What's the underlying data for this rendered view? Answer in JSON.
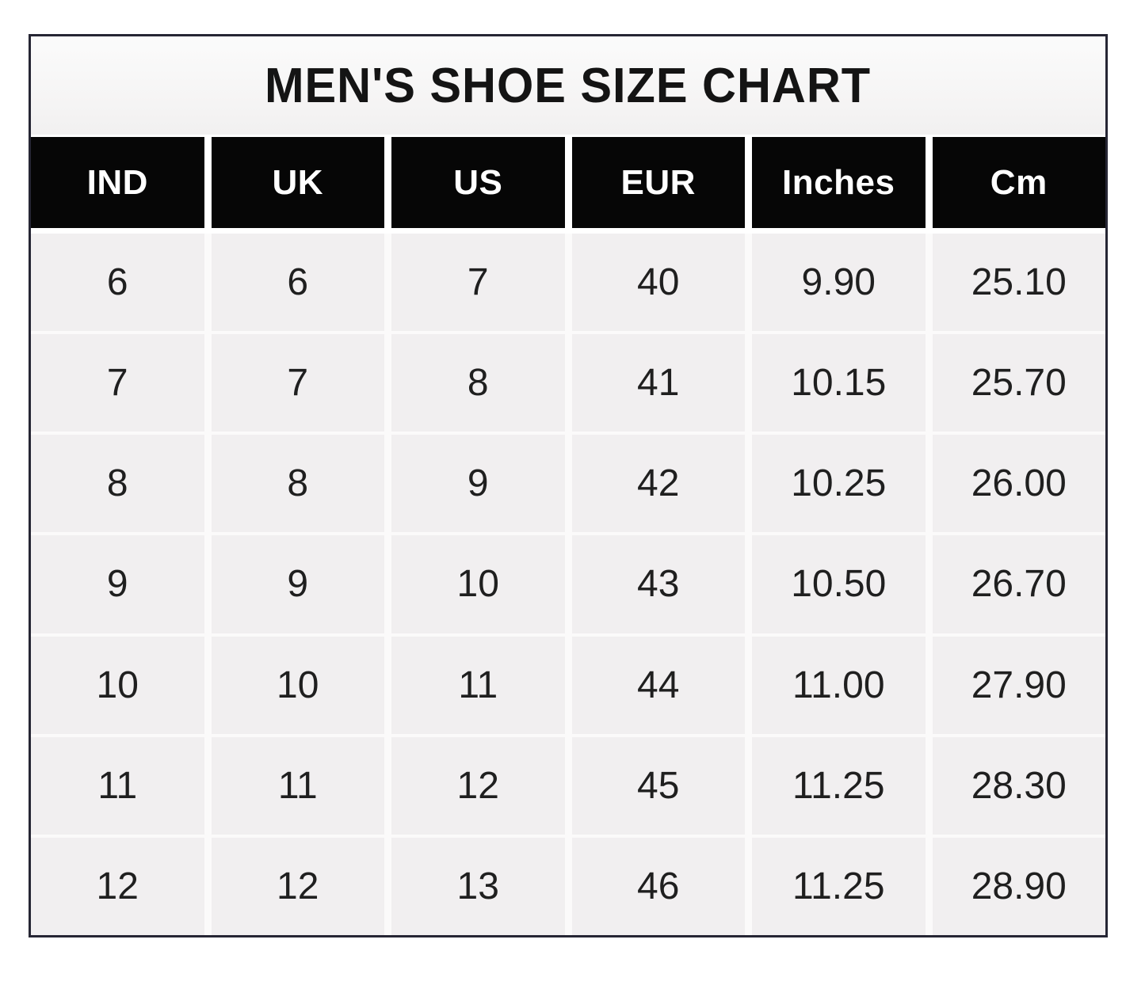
{
  "title": "MEN'S SHOE SIZE CHART",
  "chart_data": {
    "type": "table",
    "title": "MEN'S SHOE SIZE CHART",
    "columns": [
      "IND",
      "UK",
      "US",
      "EUR",
      "Inches",
      "Cm"
    ],
    "rows": [
      [
        "6",
        "6",
        "7",
        "40",
        "9.90",
        "25.10"
      ],
      [
        "7",
        "7",
        "8",
        "41",
        "10.15",
        "25.70"
      ],
      [
        "8",
        "8",
        "9",
        "42",
        "10.25",
        "26.00"
      ],
      [
        "9",
        "9",
        "10",
        "43",
        "10.50",
        "26.70"
      ],
      [
        "10",
        "10",
        "11",
        "44",
        "11.00",
        "27.90"
      ],
      [
        "11",
        "11",
        "12",
        "45",
        "11.25",
        "28.30"
      ],
      [
        "12",
        "12",
        "13",
        "46",
        "11.25",
        "28.90"
      ]
    ],
    "layout": {
      "header_position": "top",
      "grid": "white separator lines between cells",
      "row_striping": "none"
    },
    "colors": {
      "frame_border": "#262634",
      "header_bg": "#060606",
      "header_text": "#ffffff",
      "title_bg": "#f6f5f5",
      "title_text": "#141414",
      "cell_bg": "#f1eff0",
      "separator": "#fbfafa",
      "data_text": "#1f1f1f",
      "page_bg": "#ffffff"
    }
  }
}
